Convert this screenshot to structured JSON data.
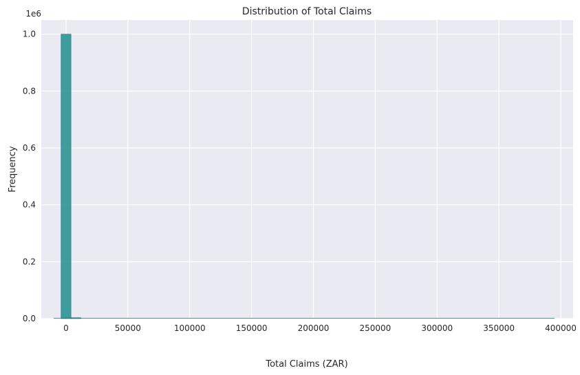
{
  "chart_data": {
    "type": "bar",
    "subtype": "histogram",
    "title": "Distribution of Total Claims",
    "xlabel": "Total Claims (ZAR)",
    "ylabel": "Frequency",
    "y_offset_label": "1e6",
    "xlim": [
      -20000,
      410000
    ],
    "ylim": [
      0,
      1.05
    ],
    "x_ticks": [
      0,
      50000,
      100000,
      150000,
      200000,
      250000,
      300000,
      350000,
      400000
    ],
    "x_tick_labels": [
      "0",
      "50000",
      "100000",
      "150000",
      "200000",
      "250000",
      "300000",
      "350000",
      "400000"
    ],
    "y_ticks": [
      0,
      0.2,
      0.4,
      0.6,
      0.8,
      1.0
    ],
    "y_tick_labels": [
      "0.0",
      "0.2",
      "0.4",
      "0.6",
      "0.8",
      "1.0"
    ],
    "bin_edges": [
      -4000,
      4000,
      12000
    ],
    "counts": [
      1.0,
      0.003
    ],
    "grid": true,
    "colors": {
      "bar": "#2a9595",
      "bar_edge": "#1f6f6f",
      "plot_bg": "#eaeaf2",
      "grid": "#ffffff"
    }
  }
}
